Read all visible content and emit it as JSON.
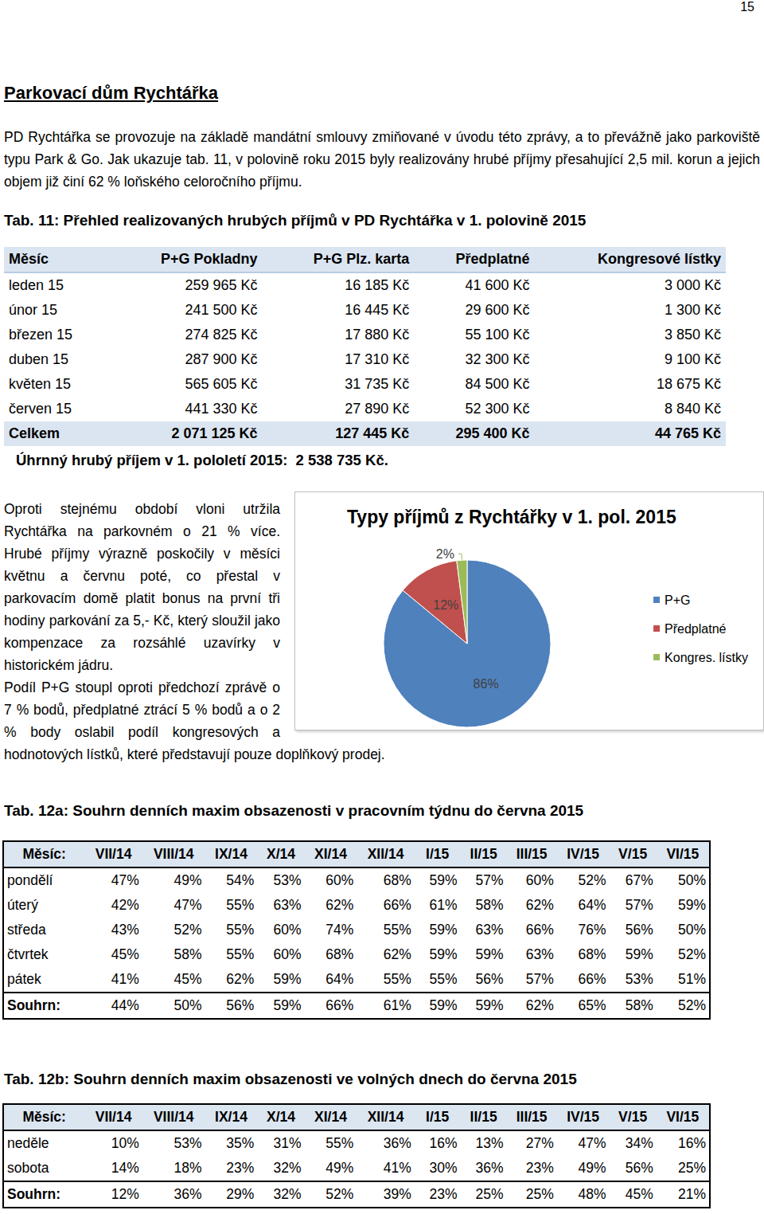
{
  "page_number": "15",
  "heading": "Parkovací dům Rychtářka",
  "intro": "PD Rychtářka se provozuje na základě mandátní smlouvy zmiňované v úvodu této zprávy, a to převážně jako parkoviště typu Park & Go. Jak ukazuje tab. 11, v polovině roku 2015 byly realizovány hrubé příjmy přesahující 2,5 mil. korun a jejich objem již činí 62 % loňského celoročního příjmu.",
  "table11": {
    "title": "Tab. 11: Přehled realizovaných hrubých příjmů v PD Rychtářka v 1. polovině 2015",
    "header": [
      "Měsíc",
      "P+G Pokladny",
      "P+G Plz. karta",
      "Předplatné",
      "Kongresové lístky"
    ],
    "rows": [
      [
        "leden 15",
        "259 965 Kč",
        "16 185 Kč",
        "41 600 Kč",
        "3 000 Kč"
      ],
      [
        "únor 15",
        "241 500 Kč",
        "16 445 Kč",
        "29 600 Kč",
        "1 300 Kč"
      ],
      [
        "březen 15",
        "274 825 Kč",
        "17 880 Kč",
        "55 100 Kč",
        "3 850 Kč"
      ],
      [
        "duben 15",
        "287 900 Kč",
        "17 310 Kč",
        "32 300 Kč",
        "9 100 Kč"
      ],
      [
        "květen 15",
        "565 605 Kč",
        "31 735 Kč",
        "84 500 Kč",
        "18 675 Kč"
      ],
      [
        "červen 15",
        "441 330 Kč",
        "27 890 Kč",
        "52 300 Kč",
        "8 840 Kč"
      ]
    ],
    "total": [
      "Celkem",
      "2 071 125 Kč",
      "127 445 Kč",
      "295 400 Kč",
      "44 765 Kč"
    ],
    "summary": "Úhrnný hrubý příjem v 1. pololetí 2015:  2 538 735 Kč."
  },
  "side_text": "Oproti stejnému období vloni utržila Rychtářka na parkovném o 21 % více. Hrubé příjmy výrazně poskočily v měsíci květnu a červnu poté, co přestal v parkovacím domě platit bonus na první tři hodiny parkování za 5,- Kč, který sloužil jako kompenzace za rozsáhlé uzavírky v historickém jádru.",
  "chart_data": {
    "type": "pie",
    "title": "Typy příjmů z Rychtářky v 1. pol. 2015",
    "categories": [
      "P+G",
      "Předplatné",
      "Kongres. lístky"
    ],
    "values": [
      86,
      12,
      2
    ],
    "value_labels": [
      "86%",
      "12%",
      "2%"
    ],
    "colors": [
      "#4f81bd",
      "#c0504d",
      "#9bbb59"
    ],
    "data_labels": true,
    "legend": "right"
  },
  "after_text": "Podíl P+G stoupl oproti předchozí zprávě o 7 % bodů, předplatné ztrácí 5 % bodů a o 2 % body oslabil podíl kongresových a hodnotových lístků, které představují pouze doplňkový prodej.",
  "table12a": {
    "title": "Tab. 12a: Souhrn denních maxim obsazenosti v pracovním týdnu do června 2015",
    "header": [
      "Měsíc:",
      "VII/14",
      "VIII/14",
      "IX/14",
      "X/14",
      "XI/14",
      "XII/14",
      "I/15",
      "II/15",
      "III/15",
      "IV/15",
      "V/15",
      "VI/15"
    ],
    "rows": [
      [
        "pondělí",
        "47%",
        "49%",
        "54%",
        "53%",
        "60%",
        "68%",
        "59%",
        "57%",
        "60%",
        "52%",
        "67%",
        "50%"
      ],
      [
        "úterý",
        "42%",
        "47%",
        "55%",
        "63%",
        "62%",
        "66%",
        "61%",
        "58%",
        "62%",
        "64%",
        "57%",
        "59%"
      ],
      [
        "středa",
        "43%",
        "52%",
        "55%",
        "60%",
        "74%",
        "55%",
        "59%",
        "63%",
        "66%",
        "76%",
        "56%",
        "50%"
      ],
      [
        "čtvrtek",
        "45%",
        "58%",
        "55%",
        "60%",
        "68%",
        "62%",
        "59%",
        "59%",
        "63%",
        "68%",
        "59%",
        "52%"
      ],
      [
        "pátek",
        "41%",
        "45%",
        "62%",
        "59%",
        "64%",
        "55%",
        "55%",
        "56%",
        "57%",
        "66%",
        "53%",
        "51%"
      ]
    ],
    "total": [
      "Souhrn:",
      "44%",
      "50%",
      "56%",
      "59%",
      "66%",
      "61%",
      "59%",
      "59%",
      "62%",
      "65%",
      "58%",
      "52%"
    ]
  },
  "table12b": {
    "title": "Tab. 12b: Souhrn denních maxim obsazenosti ve volných dnech do června 2015",
    "header": [
      "Měsíc:",
      "VII/14",
      "VIII/14",
      "IX/14",
      "X/14",
      "XI/14",
      "XII/14",
      "I/15",
      "II/15",
      "III/15",
      "IV/15",
      "V/15",
      "VI/15"
    ],
    "rows": [
      [
        "neděle",
        "10%",
        "53%",
        "35%",
        "31%",
        "55%",
        "36%",
        "16%",
        "13%",
        "27%",
        "47%",
        "34%",
        "16%"
      ],
      [
        "sobota",
        "14%",
        "18%",
        "23%",
        "32%",
        "49%",
        "41%",
        "30%",
        "36%",
        "23%",
        "49%",
        "56%",
        "25%"
      ]
    ],
    "total": [
      "Souhrn:",
      "12%",
      "36%",
      "29%",
      "32%",
      "52%",
      "39%",
      "23%",
      "25%",
      "25%",
      "48%",
      "45%",
      "21%"
    ]
  }
}
